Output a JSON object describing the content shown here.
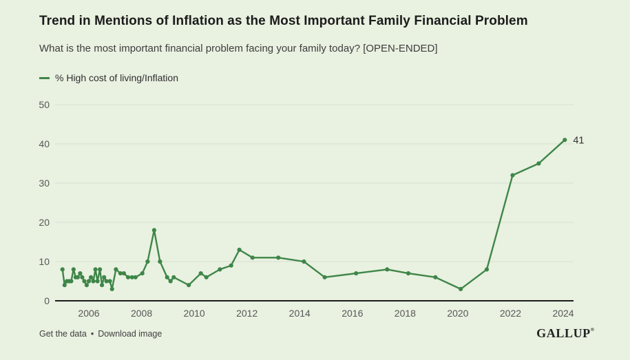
{
  "header": {
    "title": "Trend in Mentions of Inflation as the Most Important Family Financial Problem",
    "subtitle": "What is the most important financial problem facing your family today? [OPEN-ENDED]"
  },
  "legend": {
    "label": "% High cost of living/Inflation"
  },
  "colors": {
    "background": "#e9f1e1",
    "line": "#3e8648",
    "point": "#3e8648",
    "grid": "#d7ded1",
    "axis": "#1a1a1a",
    "tick_label": "#575757",
    "annotation": "#333333"
  },
  "chart_data": {
    "type": "line",
    "title": "Trend in Mentions of Inflation as the Most Important Family Financial Problem",
    "xlabel": "",
    "ylabel": "",
    "ylim": [
      0,
      50
    ],
    "yticks": [
      0,
      10,
      20,
      30,
      40,
      50
    ],
    "xticks": [
      2006,
      2008,
      2010,
      2012,
      2014,
      2016,
      2018,
      2020,
      2022,
      2024
    ],
    "grid": "horizontal",
    "legend_position": "top-left",
    "end_label": "41",
    "series": [
      {
        "name": "% High cost of living/Inflation",
        "points": [
          [
            2005.0,
            8
          ],
          [
            2005.08,
            4
          ],
          [
            2005.17,
            5
          ],
          [
            2005.25,
            5
          ],
          [
            2005.33,
            5
          ],
          [
            2005.42,
            8
          ],
          [
            2005.5,
            6
          ],
          [
            2005.58,
            6
          ],
          [
            2005.67,
            7
          ],
          [
            2005.75,
            6
          ],
          [
            2005.83,
            5
          ],
          [
            2005.92,
            4
          ],
          [
            2006.0,
            5
          ],
          [
            2006.08,
            6
          ],
          [
            2006.17,
            5
          ],
          [
            2006.25,
            8
          ],
          [
            2006.33,
            5
          ],
          [
            2006.42,
            8
          ],
          [
            2006.5,
            4
          ],
          [
            2006.58,
            6
          ],
          [
            2006.67,
            5
          ],
          [
            2006.8,
            5
          ],
          [
            2006.88,
            3
          ],
          [
            2007.03,
            8
          ],
          [
            2007.2,
            7
          ],
          [
            2007.33,
            7
          ],
          [
            2007.49,
            6
          ],
          [
            2007.64,
            6
          ],
          [
            2007.77,
            6
          ],
          [
            2008.03,
            7
          ],
          [
            2008.23,
            10
          ],
          [
            2008.48,
            18
          ],
          [
            2008.7,
            10
          ],
          [
            2008.97,
            6
          ],
          [
            2009.1,
            5
          ],
          [
            2009.22,
            6
          ],
          [
            2009.79,
            4
          ],
          [
            2010.25,
            7
          ],
          [
            2010.46,
            6
          ],
          [
            2010.97,
            8
          ],
          [
            2011.4,
            9
          ],
          [
            2011.71,
            13
          ],
          [
            2012.21,
            11
          ],
          [
            2013.19,
            11
          ],
          [
            2014.16,
            10
          ],
          [
            2014.95,
            6
          ],
          [
            2016.14,
            7
          ],
          [
            2017.32,
            8
          ],
          [
            2018.12,
            7
          ],
          [
            2019.15,
            6
          ],
          [
            2020.11,
            3
          ],
          [
            2021.1,
            8
          ],
          [
            2022.08,
            32
          ],
          [
            2023.07,
            35
          ],
          [
            2024.06,
            41
          ]
        ]
      }
    ]
  },
  "footer": {
    "links": [
      {
        "label": "Get the data"
      },
      {
        "label": "Download image"
      }
    ],
    "separator": "•",
    "brand": "GALLUP",
    "brand_mark": "®"
  }
}
